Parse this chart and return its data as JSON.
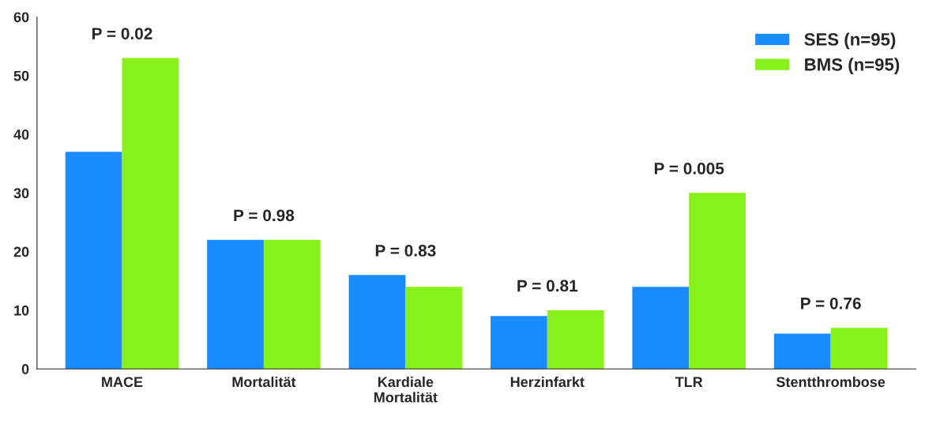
{
  "chart_data": {
    "type": "bar",
    "categories": [
      "MACE",
      "Mortalität",
      "Kardiale\nMortalität",
      "Herzinfarkt",
      "TLR",
      "Stentthrombose"
    ],
    "series": [
      {
        "name": "SES (n=95)",
        "color": "#1a8cff",
        "values": [
          37,
          22,
          16,
          9,
          14,
          6
        ]
      },
      {
        "name": "BMS (n=95)",
        "color": "#88f01a",
        "values": [
          53,
          22,
          14,
          10,
          30,
          7
        ]
      }
    ],
    "ylim": [
      0,
      60
    ],
    "yticks": [
      0,
      10,
      20,
      30,
      40,
      50,
      60
    ],
    "grid": false,
    "legend": "top right",
    "annotations": [
      "P = 0.02",
      "P = 0.98",
      "P = 0.83",
      "P = 0.81",
      "P = 0.005",
      "P = 0.76"
    ]
  }
}
